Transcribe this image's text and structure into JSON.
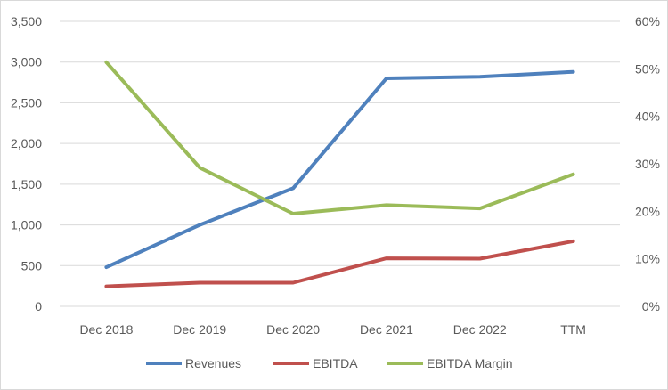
{
  "chart_data": {
    "type": "line",
    "categories": [
      "Dec 2018",
      "Dec 2019",
      "Dec 2020",
      "Dec 2021",
      "Dec 2022",
      "TTM"
    ],
    "y_left": {
      "ylim": [
        0,
        3500
      ],
      "ticks": [
        0,
        500,
        1000,
        1500,
        2000,
        2500,
        3000,
        3500
      ],
      "tick_labels": [
        "0",
        "500",
        "1,000",
        "1,500",
        "2,000",
        "2,500",
        "3,000",
        "3,500"
      ]
    },
    "y_right": {
      "ylim": [
        0,
        60
      ],
      "ticks": [
        0,
        10,
        20,
        30,
        40,
        50,
        60
      ],
      "tick_labels": [
        "0%",
        "10%",
        "20%",
        "30%",
        "40%",
        "50%",
        "60%"
      ],
      "unit": "percent"
    },
    "grid": true,
    "legend_position": "bottom",
    "series": [
      {
        "name": "Revenues",
        "axis": "left",
        "color": "#4f81bd",
        "values": [
          480,
          1000,
          1450,
          2800,
          2820,
          2880
        ]
      },
      {
        "name": "EBITDA",
        "axis": "left",
        "color": "#c0504d",
        "values": [
          245,
          290,
          290,
          590,
          585,
          800
        ]
      },
      {
        "name": "EBITDA Margin",
        "axis": "right",
        "color": "#9bbb59",
        "values": [
          51.4,
          29.2,
          19.5,
          21.3,
          20.6,
          27.8
        ]
      }
    ]
  }
}
